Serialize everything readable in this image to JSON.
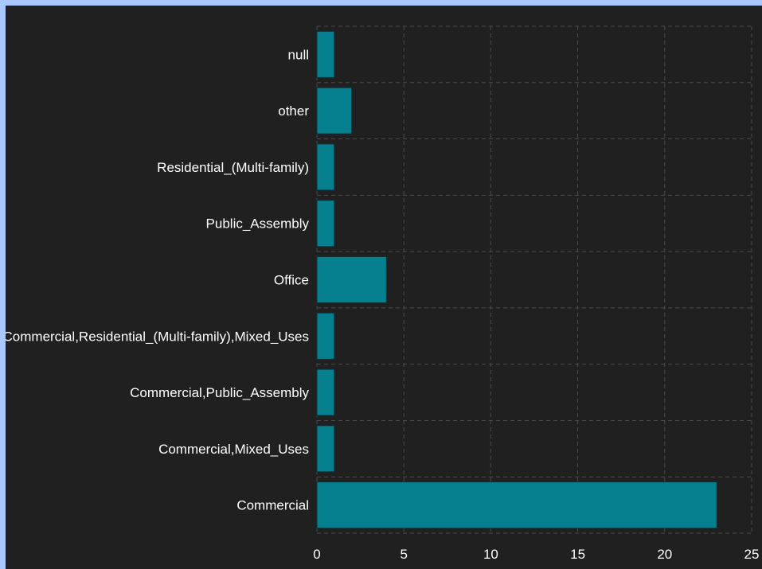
{
  "colors": {
    "background": "#202020",
    "frame": "#a9c8ff",
    "bar": "#06808f",
    "grid": "#4a4a4a",
    "text": "#ffffff"
  },
  "chart_data": {
    "type": "bar",
    "orientation": "horizontal",
    "categories": [
      "null",
      "other",
      "Residential_(Multi-family)",
      "Public_Assembly",
      "Office",
      "Commercial,Residential_(Multi-family),Mixed_Uses",
      "Commercial,Public_Assembly",
      "Commercial,Mixed_Uses",
      "Commercial"
    ],
    "values": [
      1,
      2,
      1,
      1,
      4,
      1,
      1,
      1,
      23
    ],
    "xlim": [
      0,
      25
    ],
    "xticks": [
      0,
      5,
      10,
      15,
      20,
      25
    ],
    "grid": true,
    "title": "",
    "xlabel": "",
    "ylabel": ""
  }
}
